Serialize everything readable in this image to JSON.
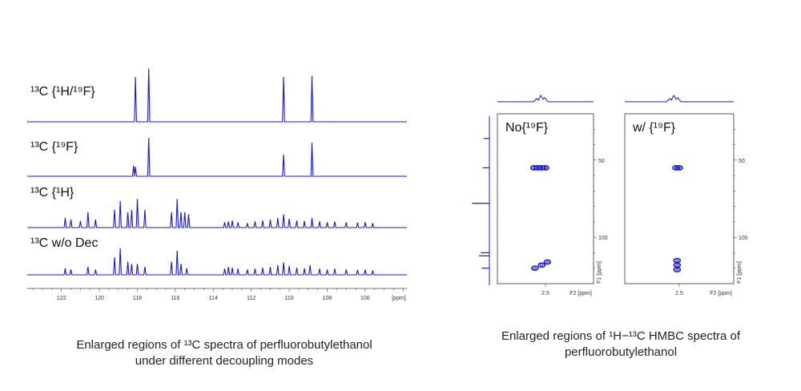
{
  "chart_data": [
    {
      "type": "line",
      "xlabel": "[ppm]",
      "xlim": [
        123.8,
        103.8
      ],
      "x_ticks": [
        122,
        120,
        118,
        116,
        114,
        112,
        110,
        108,
        106
      ],
      "caption": {
        "line1": "Enlarged regions of ¹³C spectra of perfluorobutylethanol",
        "line2": "under different decoupling modes"
      },
      "series": [
        {
          "name": "¹³C {¹H/¹⁹F}",
          "peaks": [
            {
              "x": 118.1,
              "y": 0.8
            },
            {
              "x": 117.4,
              "y": 0.95
            },
            {
              "x": 110.3,
              "y": 0.8
            },
            {
              "x": 108.8,
              "y": 0.82
            }
          ]
        },
        {
          "name": "¹³C {¹⁹F}",
          "peaks": [
            {
              "x": 118.2,
              "y": 0.22
            },
            {
              "x": 118.1,
              "y": 0.2
            },
            {
              "x": 117.4,
              "y": 0.8
            },
            {
              "x": 110.3,
              "y": 0.45
            },
            {
              "x": 108.8,
              "y": 0.7
            }
          ]
        },
        {
          "name": "¹³C {¹H}",
          "peaks": [
            {
              "x": 121.8,
              "y": 0.22
            },
            {
              "x": 121.5,
              "y": 0.18
            },
            {
              "x": 121.0,
              "y": 0.15
            },
            {
              "x": 120.6,
              "y": 0.35
            },
            {
              "x": 120.2,
              "y": 0.18
            },
            {
              "x": 119.2,
              "y": 0.4
            },
            {
              "x": 118.9,
              "y": 0.6
            },
            {
              "x": 118.5,
              "y": 0.35
            },
            {
              "x": 118.3,
              "y": 0.4
            },
            {
              "x": 118.0,
              "y": 0.65
            },
            {
              "x": 117.6,
              "y": 0.4
            },
            {
              "x": 116.2,
              "y": 0.35
            },
            {
              "x": 115.9,
              "y": 0.65
            },
            {
              "x": 115.7,
              "y": 0.35
            },
            {
              "x": 115.5,
              "y": 0.35
            },
            {
              "x": 115.3,
              "y": 0.3
            },
            {
              "x": 113.4,
              "y": 0.12
            },
            {
              "x": 113.2,
              "y": 0.14
            },
            {
              "x": 113.0,
              "y": 0.16
            },
            {
              "x": 112.7,
              "y": 0.12
            },
            {
              "x": 112.2,
              "y": 0.1
            },
            {
              "x": 111.8,
              "y": 0.14
            },
            {
              "x": 111.4,
              "y": 0.16
            },
            {
              "x": 111.0,
              "y": 0.18
            },
            {
              "x": 110.6,
              "y": 0.22
            },
            {
              "x": 110.3,
              "y": 0.3
            },
            {
              "x": 110.0,
              "y": 0.2
            },
            {
              "x": 109.6,
              "y": 0.16
            },
            {
              "x": 109.2,
              "y": 0.15
            },
            {
              "x": 108.8,
              "y": 0.22
            },
            {
              "x": 108.4,
              "y": 0.14
            },
            {
              "x": 108.0,
              "y": 0.12
            },
            {
              "x": 107.6,
              "y": 0.14
            },
            {
              "x": 107.0,
              "y": 0.12
            },
            {
              "x": 106.4,
              "y": 0.11
            },
            {
              "x": 106.0,
              "y": 0.12
            },
            {
              "x": 105.6,
              "y": 0.1
            }
          ]
        },
        {
          "name": "¹³C w/o Dec",
          "peaks": [
            {
              "x": 121.8,
              "y": 0.15
            },
            {
              "x": 121.5,
              "y": 0.12
            },
            {
              "x": 120.6,
              "y": 0.18
            },
            {
              "x": 120.2,
              "y": 0.12
            },
            {
              "x": 119.2,
              "y": 0.4
            },
            {
              "x": 118.9,
              "y": 0.6
            },
            {
              "x": 118.5,
              "y": 0.3
            },
            {
              "x": 118.3,
              "y": 0.25
            },
            {
              "x": 118.0,
              "y": 0.25
            },
            {
              "x": 117.6,
              "y": 0.18
            },
            {
              "x": 116.2,
              "y": 0.3
            },
            {
              "x": 115.9,
              "y": 0.55
            },
            {
              "x": 115.7,
              "y": 0.25
            },
            {
              "x": 115.4,
              "y": 0.15
            },
            {
              "x": 113.4,
              "y": 0.14
            },
            {
              "x": 113.2,
              "y": 0.18
            },
            {
              "x": 113.0,
              "y": 0.16
            },
            {
              "x": 112.7,
              "y": 0.14
            },
            {
              "x": 112.2,
              "y": 0.12
            },
            {
              "x": 111.8,
              "y": 0.14
            },
            {
              "x": 111.4,
              "y": 0.16
            },
            {
              "x": 111.0,
              "y": 0.18
            },
            {
              "x": 110.6,
              "y": 0.22
            },
            {
              "x": 110.3,
              "y": 0.28
            },
            {
              "x": 110.0,
              "y": 0.2
            },
            {
              "x": 109.6,
              "y": 0.16
            },
            {
              "x": 109.2,
              "y": 0.15
            },
            {
              "x": 108.9,
              "y": 0.22
            },
            {
              "x": 108.4,
              "y": 0.14
            },
            {
              "x": 108.0,
              "y": 0.12
            },
            {
              "x": 107.6,
              "y": 0.14
            },
            {
              "x": 107.0,
              "y": 0.12
            },
            {
              "x": 106.4,
              "y": 0.11
            },
            {
              "x": 106.0,
              "y": 0.12
            },
            {
              "x": 105.6,
              "y": 0.1
            }
          ]
        }
      ]
    },
    {
      "type": "heatmap",
      "caption": {
        "line1": "Enlarged regions of ¹H−¹³C HMBC spectra of",
        "line2": "perfluorobutylethanol"
      },
      "x_label": "F2 [ppm]",
      "y_label": "F1 [ppm]",
      "xlim": [
        3.0,
        2.0
      ],
      "ylim": [
        20,
        130
      ],
      "x_ticks": [
        2.5
      ],
      "y_ticks": [
        50,
        100
      ],
      "panels": [
        {
          "name": "No{¹⁹F}",
          "cross_peaks": [
            {
              "x": 2.5,
              "y": 55
            },
            {
              "x": 2.54,
              "y": 55
            },
            {
              "x": 2.58,
              "y": 55
            },
            {
              "x": 2.62,
              "y": 55
            },
            {
              "x": 2.48,
              "y": 116
            },
            {
              "x": 2.54,
              "y": 118
            },
            {
              "x": 2.61,
              "y": 120
            }
          ],
          "f1_projection": [
            {
              "y": 36,
              "h": 0.3
            },
            {
              "y": 55,
              "h": 0.35
            },
            {
              "y": 78,
              "h": 0.9
            },
            {
              "y": 110,
              "h": 0.45
            },
            {
              "y": 112,
              "h": 0.55
            },
            {
              "y": 120,
              "h": 0.4
            }
          ]
        },
        {
          "name": "w/ {¹⁹F}",
          "cross_peaks": [
            {
              "x": 2.5,
              "y": 55
            },
            {
              "x": 2.53,
              "y": 55
            },
            {
              "x": 2.52,
              "y": 115
            },
            {
              "x": 2.52,
              "y": 118
            },
            {
              "x": 2.52,
              "y": 121
            }
          ]
        }
      ]
    }
  ],
  "colors": {
    "trace": "#1818cc",
    "axis": "#444444",
    "frame": "#333333"
  }
}
